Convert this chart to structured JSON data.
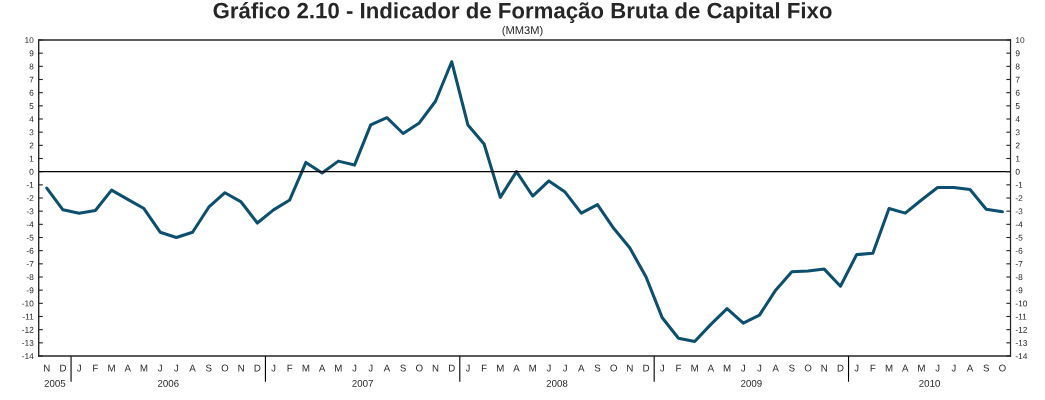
{
  "chart_data": {
    "type": "line",
    "title": "Gráfico 2.10 - Indicador de Formação Bruta de Capital Fixo",
    "subtitle": "(MM3M)",
    "categories": [
      "N",
      "D",
      "J",
      "F",
      "M",
      "A",
      "M",
      "J",
      "J",
      "A",
      "S",
      "O",
      "N",
      "D",
      "J",
      "F",
      "M",
      "A",
      "M",
      "J",
      "J",
      "A",
      "S",
      "O",
      "N",
      "D",
      "J",
      "F",
      "M",
      "A",
      "M",
      "J",
      "J",
      "A",
      "S",
      "O",
      "N",
      "D",
      "J",
      "F",
      "M",
      "A",
      "M",
      "J",
      "J",
      "A",
      "S",
      "O",
      "N",
      "D",
      "J",
      "F",
      "M",
      "A",
      "M",
      "J",
      "J",
      "A",
      "S",
      "O"
    ],
    "series": [
      {
        "color": "#0d4f6e",
        "values": [
          -1.25,
          -2.9,
          -3.15,
          -2.95,
          -1.4,
          -2.1,
          -2.8,
          -4.6,
          -5.0,
          -4.6,
          -2.7,
          -1.6,
          -2.3,
          -3.9,
          -2.9,
          -2.15,
          0.7,
          -0.1,
          0.8,
          0.5,
          3.55,
          4.1,
          2.9,
          3.7,
          5.35,
          8.35,
          3.55,
          2.1,
          -1.95,
          0.0,
          -1.85,
          -0.7,
          -1.55,
          -3.15,
          -2.5,
          -4.3,
          -5.8,
          -8.0,
          -11.1,
          -12.65,
          -12.9,
          -11.6,
          -10.4,
          -11.5,
          -10.9,
          -9.0,
          -7.6,
          -7.55,
          -7.4,
          -8.7,
          -6.3,
          -6.2,
          -2.8,
          -3.15,
          -2.15,
          -1.2,
          -1.2,
          -1.35,
          -2.85,
          -3.05
        ]
      }
    ],
    "annotations": [
      "2005",
      "2006",
      "2007",
      "2008",
      "2009",
      "2010"
    ],
    "ylim": [
      -14,
      10
    ],
    "yticks": [
      -14,
      -13,
      -12,
      -11,
      -10,
      -9,
      -8,
      -7,
      -6,
      -5,
      -4,
      -3,
      -2,
      -1,
      0,
      1,
      2,
      3,
      4,
      5,
      6,
      7,
      8,
      9,
      10
    ],
    "y2lim": [
      -14,
      10
    ],
    "y2ticks": [
      -14,
      -13,
      -12,
      -11,
      -10,
      -9,
      -8,
      -7,
      -6,
      -5,
      -4,
      -3,
      -2,
      -1,
      0,
      1,
      2,
      3,
      4,
      5,
      6,
      7,
      8,
      9,
      10
    ],
    "ref_lines": [
      {
        "axis": "y",
        "value": 0,
        "color": "#000000"
      }
    ],
    "grid": false,
    "legend": false
  }
}
